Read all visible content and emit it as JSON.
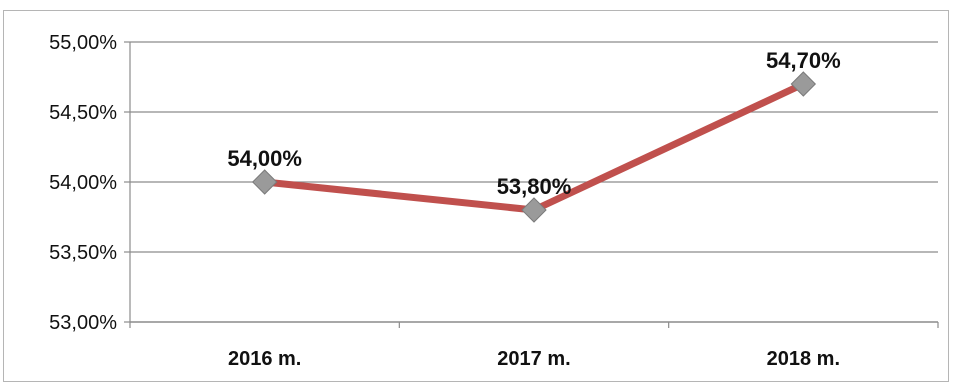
{
  "chart_data": {
    "type": "line",
    "categories": [
      "2016 m.",
      "2017 m.",
      "2018 m."
    ],
    "series": [
      {
        "values": [
          54.0,
          53.8,
          54.7
        ]
      }
    ],
    "data_labels": [
      "54,00%",
      "53,80%",
      "54,70%"
    ],
    "y_ticks": [
      53.0,
      53.5,
      54.0,
      54.5,
      55.0
    ],
    "y_tick_labels": [
      "53,00%",
      "53,50%",
      "54,00%",
      "54,50%",
      "55,00%"
    ],
    "ylim": [
      53.0,
      55.0
    ],
    "grid": true,
    "legend": "none",
    "colors": {
      "line": "#c0504d",
      "marker": "#9a9a9a",
      "grid": "#8c8c8c",
      "axis": "#8c8c8c"
    }
  }
}
